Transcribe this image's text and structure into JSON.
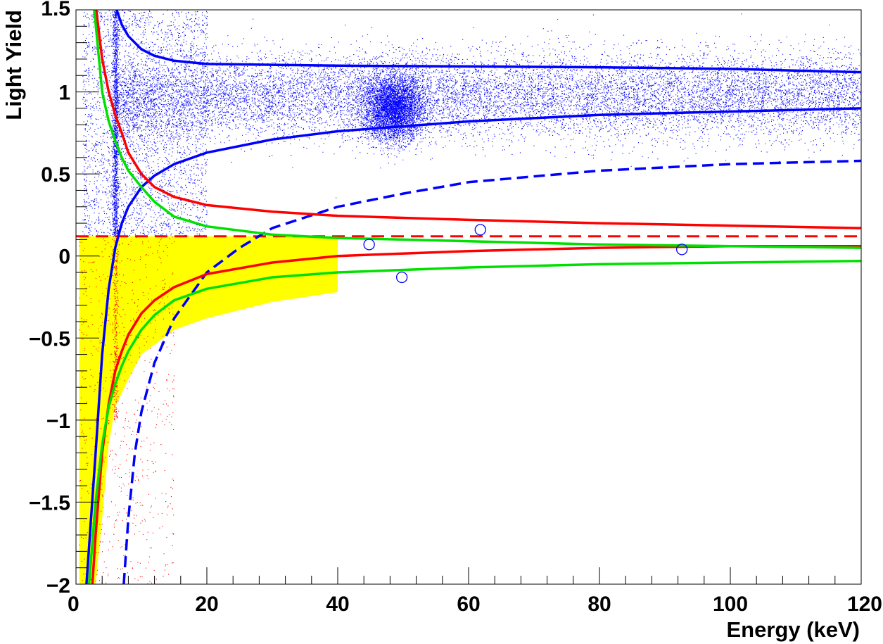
{
  "chart_data": {
    "type": "scatter",
    "title": "",
    "xlabel": "Energy (keV)",
    "ylabel": "Light Yield",
    "xlim": [
      0,
      120
    ],
    "ylim": [
      -2,
      1.5
    ],
    "x_ticks": [
      0,
      20,
      40,
      60,
      80,
      100,
      120
    ],
    "x_tick_labels": [
      "0",
      "20",
      "40",
      "60",
      "80",
      "100",
      "120"
    ],
    "y_ticks": [
      -2,
      -1.5,
      -1,
      -0.5,
      0,
      0.5,
      1,
      1.5
    ],
    "y_tick_labels": [
      "−2",
      "−1.5",
      "−1",
      "−0.5",
      "0",
      "0.5",
      "1",
      "1.5"
    ],
    "grid": false,
    "legend": "none",
    "colors": {
      "events": "#0000ff",
      "acceptance_events": "#ff0000",
      "electron_band": "#0000ff",
      "oxygen_band": "#ff0000",
      "tungsten_band": "#00e000",
      "acceptance_region": "#ffff00",
      "threshold": "#ff0000",
      "candidates": "#0000ff"
    },
    "acceptance_region": {
      "x_range": [
        0.5,
        40
      ],
      "upper_light_yield": 0.12,
      "lower_edge": [
        [
          0.5,
          -2
        ],
        [
          3,
          -2
        ],
        [
          4,
          -1.6
        ],
        [
          5,
          -1.15
        ],
        [
          6,
          -0.92
        ],
        [
          8,
          -0.75
        ],
        [
          10,
          -0.6
        ],
        [
          15,
          -0.45
        ],
        [
          20,
          -0.38
        ],
        [
          30,
          -0.28
        ],
        [
          40,
          -0.22
        ]
      ]
    },
    "threshold_line": {
      "light_yield": 0.12,
      "x_range": [
        0,
        120
      ],
      "style": "dashed"
    },
    "bands": [
      {
        "id": "electron-recoil-upper",
        "style": "solid",
        "points": [
          [
            6.2,
            1.5
          ],
          [
            7,
            1.41
          ],
          [
            8,
            1.34
          ],
          [
            10,
            1.26
          ],
          [
            12,
            1.22
          ],
          [
            15,
            1.19
          ],
          [
            20,
            1.17
          ],
          [
            30,
            1.165
          ],
          [
            40,
            1.16
          ],
          [
            60,
            1.155
          ],
          [
            80,
            1.15
          ],
          [
            100,
            1.14
          ],
          [
            120,
            1.12
          ]
        ]
      },
      {
        "id": "electron-recoil-lower",
        "style": "solid",
        "points": [
          [
            1.6,
            -2
          ],
          [
            3,
            -1.2
          ],
          [
            4,
            -0.6
          ],
          [
            5,
            -0.2
          ],
          [
            6,
            0.05
          ],
          [
            7,
            0.2
          ],
          [
            8,
            0.3
          ],
          [
            10,
            0.42
          ],
          [
            12,
            0.49
          ],
          [
            15,
            0.56
          ],
          [
            20,
            0.63
          ],
          [
            30,
            0.71
          ],
          [
            40,
            0.76
          ],
          [
            50,
            0.79
          ],
          [
            60,
            0.82
          ],
          [
            80,
            0.86
          ],
          [
            100,
            0.88
          ],
          [
            120,
            0.9
          ]
        ]
      },
      {
        "id": "electron-recoil-lower-dashed",
        "style": "dashed",
        "points": [
          [
            7.3,
            -2
          ],
          [
            8,
            -1.6
          ],
          [
            9,
            -1.2
          ],
          [
            10,
            -0.95
          ],
          [
            12,
            -0.65
          ],
          [
            15,
            -0.38
          ],
          [
            20,
            -0.1
          ],
          [
            25,
            0.05
          ],
          [
            30,
            0.17
          ],
          [
            40,
            0.3
          ],
          [
            50,
            0.38
          ],
          [
            60,
            0.45
          ],
          [
            80,
            0.52
          ],
          [
            100,
            0.56
          ],
          [
            120,
            0.58
          ]
        ]
      },
      {
        "id": "oxygen-recoil-upper",
        "style": "solid",
        "points": [
          [
            3.1,
            1.5
          ],
          [
            4,
            1.2
          ],
          [
            5,
            1.0
          ],
          [
            6,
            0.86
          ],
          [
            7,
            0.75
          ],
          [
            8,
            0.63
          ],
          [
            10,
            0.5
          ],
          [
            12,
            0.42
          ],
          [
            15,
            0.36
          ],
          [
            20,
            0.31
          ],
          [
            30,
            0.27
          ],
          [
            40,
            0.245
          ],
          [
            60,
            0.22
          ],
          [
            80,
            0.2
          ],
          [
            100,
            0.185
          ],
          [
            120,
            0.17
          ]
        ]
      },
      {
        "id": "oxygen-recoil-lower",
        "style": "solid",
        "points": [
          [
            2.5,
            -2
          ],
          [
            3,
            -1.7
          ],
          [
            4,
            -1.2
          ],
          [
            5,
            -0.9
          ],
          [
            6,
            -0.7
          ],
          [
            7,
            -0.58
          ],
          [
            8,
            -0.48
          ],
          [
            10,
            -0.35
          ],
          [
            12,
            -0.27
          ],
          [
            15,
            -0.19
          ],
          [
            20,
            -0.11
          ],
          [
            30,
            -0.04
          ],
          [
            40,
            0.0
          ],
          [
            60,
            0.03
          ],
          [
            80,
            0.05
          ],
          [
            100,
            0.06
          ],
          [
            120,
            0.06
          ]
        ]
      },
      {
        "id": "tungsten-recoil-upper",
        "style": "solid",
        "points": [
          [
            2.8,
            1.5
          ],
          [
            4,
            1.0
          ],
          [
            5,
            0.82
          ],
          [
            6,
            0.7
          ],
          [
            7,
            0.6
          ],
          [
            8,
            0.52
          ],
          [
            10,
            0.42
          ],
          [
            12,
            0.33
          ],
          [
            15,
            0.24
          ],
          [
            20,
            0.18
          ],
          [
            30,
            0.13
          ],
          [
            40,
            0.11
          ],
          [
            60,
            0.09
          ],
          [
            80,
            0.07
          ],
          [
            100,
            0.06
          ],
          [
            120,
            0.05
          ]
        ]
      },
      {
        "id": "tungsten-recoil-lower",
        "style": "solid",
        "points": [
          [
            2.0,
            -2
          ],
          [
            3,
            -1.5
          ],
          [
            4,
            -1.15
          ],
          [
            5,
            -0.92
          ],
          [
            6,
            -0.78
          ],
          [
            7,
            -0.67
          ],
          [
            8,
            -0.58
          ],
          [
            10,
            -0.45
          ],
          [
            12,
            -0.36
          ],
          [
            15,
            -0.27
          ],
          [
            20,
            -0.2
          ],
          [
            30,
            -0.13
          ],
          [
            40,
            -0.1
          ],
          [
            60,
            -0.07
          ],
          [
            80,
            -0.05
          ],
          [
            100,
            -0.04
          ],
          [
            120,
            -0.03
          ]
        ]
      }
    ],
    "event_clusters": [
      {
        "id": "electron-band",
        "count": 14000,
        "x_range": [
          6,
          120
        ],
        "light_yield_mean": 0.98,
        "light_yield_sigma": 0.13
      },
      {
        "id": "low-energy-spread",
        "count": 3000,
        "x_range": [
          1,
          20
        ],
        "light_yield_range": [
          0.12,
          1.5
        ]
      },
      {
        "id": "x-ray-line-6keV",
        "count": 1400,
        "x_center": 6.0,
        "x_sigma": 0.25,
        "light_yield_range": [
          0.12,
          1.5
        ]
      },
      {
        "id": "gamma-line-46keV",
        "count": 4500,
        "x_center": 48.5,
        "x_sigma": 2.3,
        "light_yield_mean": 0.9,
        "light_yield_sigma": 0.1
      },
      {
        "id": "acceptance-region-events",
        "count": 700,
        "x_range": [
          0.5,
          15
        ],
        "light_yield_range": [
          -2,
          0.12
        ]
      },
      {
        "id": "acceptance-line-6keV",
        "count": 300,
        "x_center": 6.0,
        "x_sigma": 0.2,
        "light_yield_range": [
          -1.0,
          0.12
        ]
      }
    ],
    "candidate_events": [
      {
        "energy": 44.8,
        "light_yield": 0.07
      },
      {
        "energy": 49.8,
        "light_yield": -0.13
      },
      {
        "energy": 61.8,
        "light_yield": 0.16
      },
      {
        "energy": 92.6,
        "light_yield": 0.04
      }
    ]
  }
}
